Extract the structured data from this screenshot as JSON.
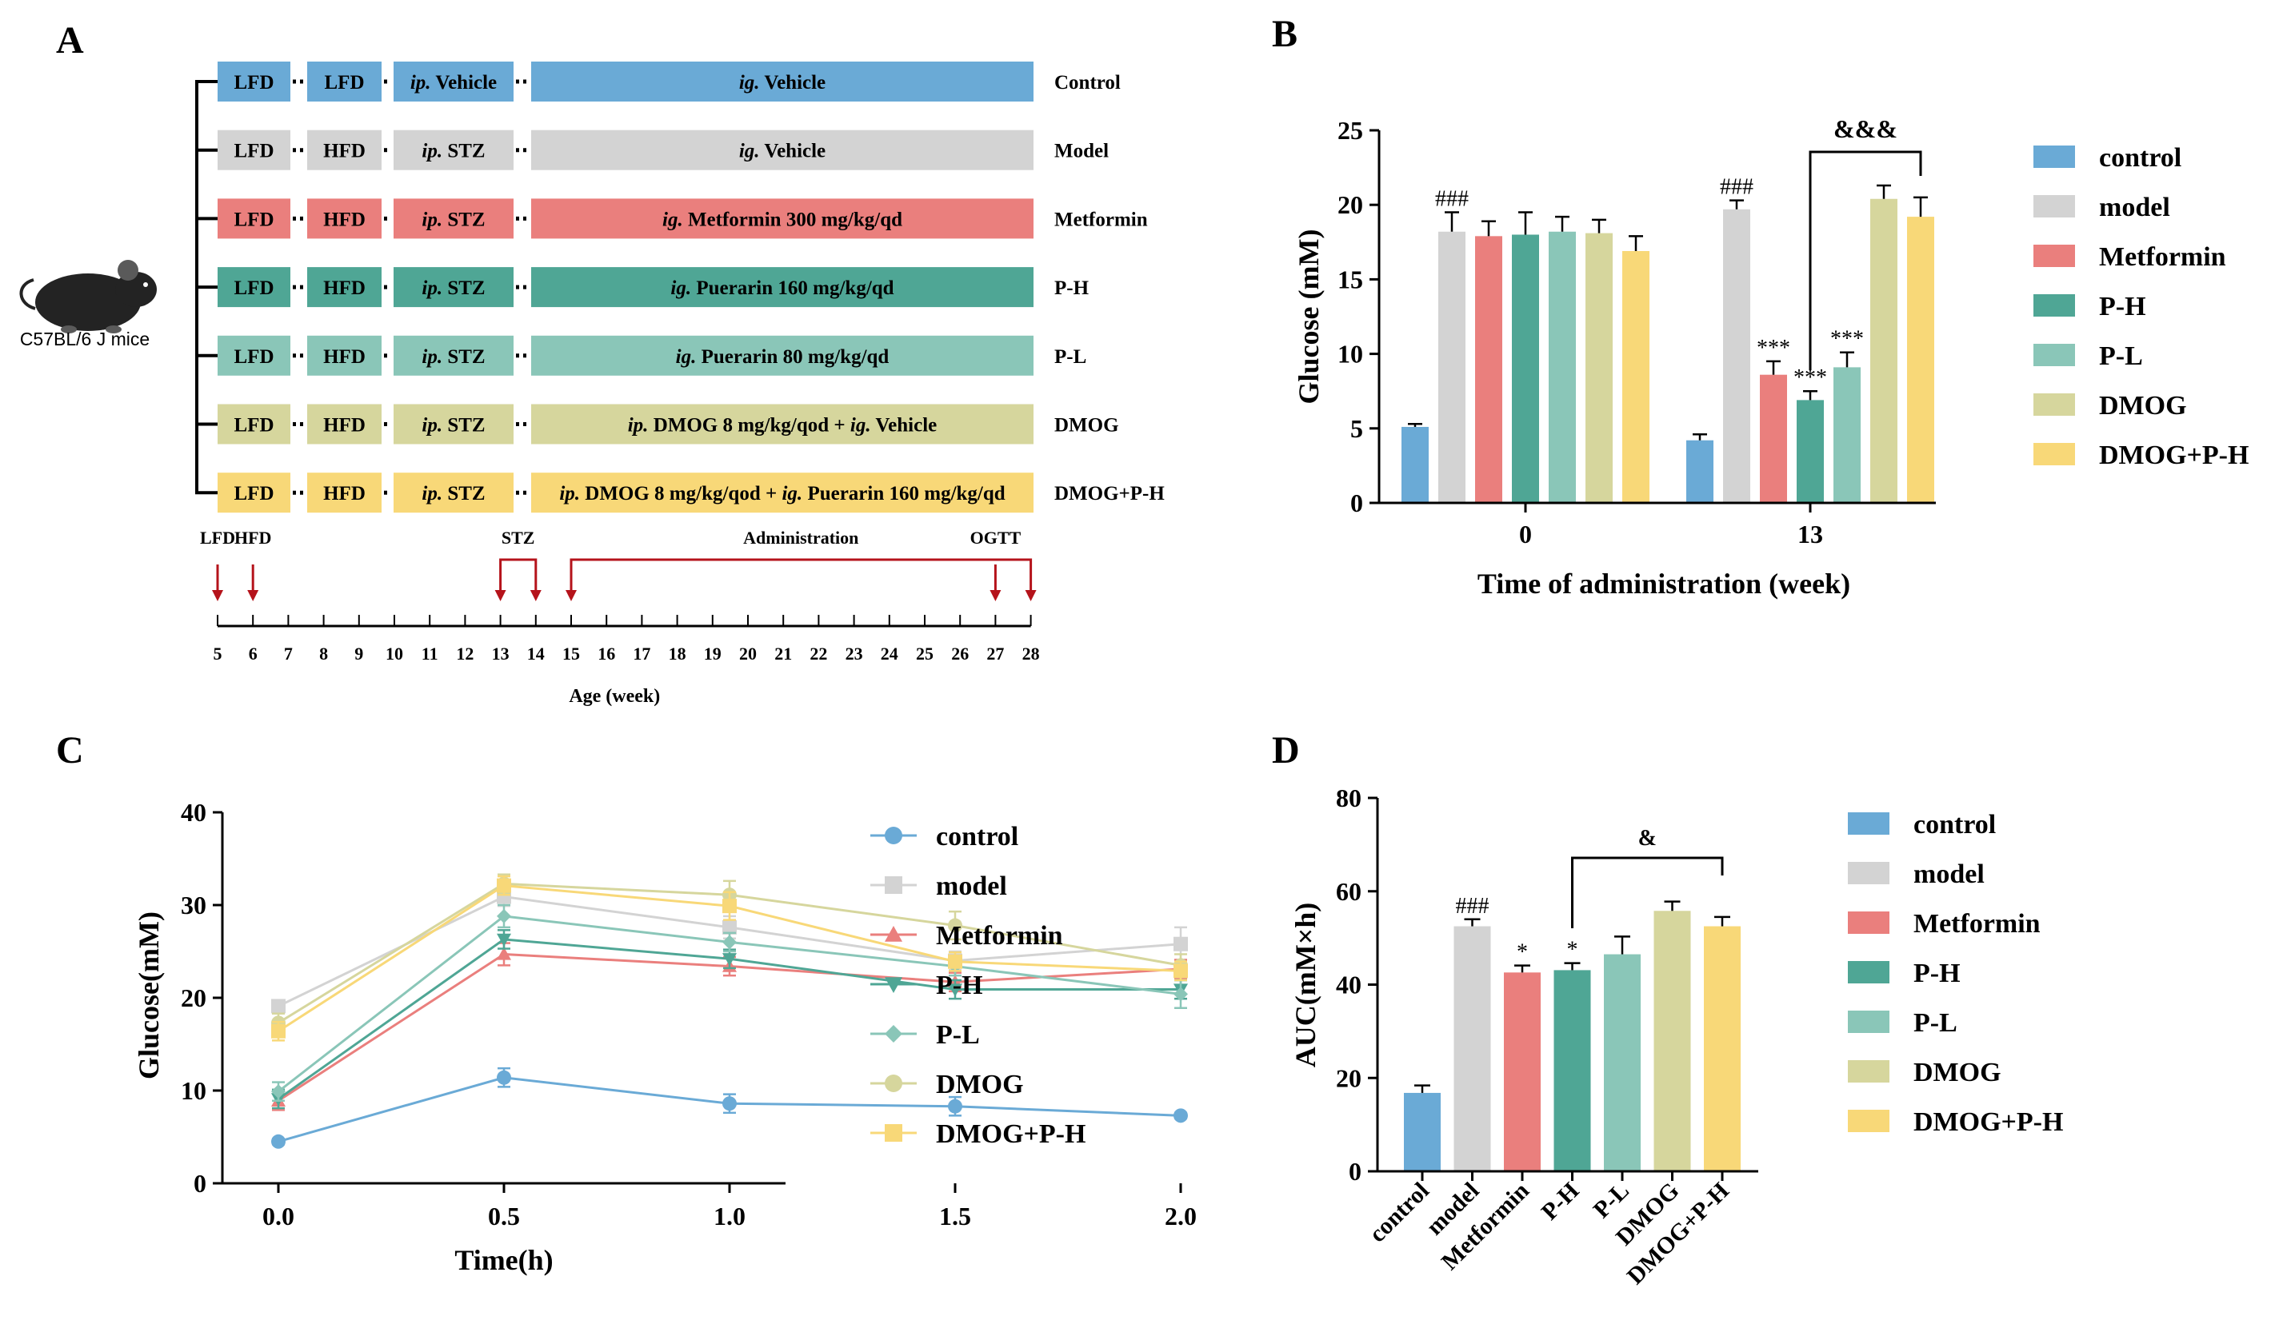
{
  "colors": {
    "control": "#6aaad6",
    "model": "#d3d3d3",
    "metformin": "#ea7f7d",
    "ph": "#4fa695",
    "pl": "#8ac6b8",
    "dmog": "#d6d69d",
    "dmogph": "#f8d878",
    "red": "#b5131b",
    "black": "#000000"
  },
  "panelA": {
    "label": "A",
    "mouse_label": "C57BL/6 J mice",
    "rows": [
      {
        "key": "control",
        "name": "Control",
        "diet1": "LFD",
        "diet2": "LFD",
        "inj": [
          "ip.",
          "Vehicle"
        ],
        "treat": [
          [
            "i",
            "ig."
          ],
          [
            "n",
            " Vehicle"
          ]
        ]
      },
      {
        "key": "model",
        "name": "Model",
        "diet1": "LFD",
        "diet2": "HFD",
        "inj": [
          "ip.",
          "STZ"
        ],
        "treat": [
          [
            "i",
            "ig."
          ],
          [
            "n",
            " Vehicle"
          ]
        ]
      },
      {
        "key": "metformin",
        "name": "Metformin",
        "diet1": "LFD",
        "diet2": "HFD",
        "inj": [
          "ip.",
          "STZ"
        ],
        "treat": [
          [
            "i",
            "ig."
          ],
          [
            "n",
            " Metformin 300 mg/kg/qd"
          ]
        ]
      },
      {
        "key": "ph",
        "name": "P-H",
        "diet1": "LFD",
        "diet2": "HFD",
        "inj": [
          "ip.",
          "STZ"
        ],
        "treat": [
          [
            "i",
            "ig."
          ],
          [
            "n",
            " Puerarin 160 mg/kg/qd"
          ]
        ]
      },
      {
        "key": "pl",
        "name": "P-L",
        "diet1": "LFD",
        "diet2": "HFD",
        "inj": [
          "ip.",
          "STZ"
        ],
        "treat": [
          [
            "i",
            "ig."
          ],
          [
            "n",
            " Puerarin 80 mg/kg/qd"
          ]
        ]
      },
      {
        "key": "dmog",
        "name": "DMOG",
        "diet1": "LFD",
        "diet2": "HFD",
        "inj": [
          "ip.",
          "STZ"
        ],
        "treat": [
          [
            "i",
            "ip."
          ],
          [
            "n",
            " DMOG 8 mg/kg/qod + "
          ],
          [
            "i",
            "ig."
          ],
          [
            "n",
            " Vehicle"
          ]
        ]
      },
      {
        "key": "dmogph",
        "name": "DMOG+P-H",
        "diet1": "LFD",
        "diet2": "HFD",
        "inj": [
          "ip.",
          "STZ"
        ],
        "treat": [
          [
            "i",
            "ip."
          ],
          [
            "n",
            " DMOG 8 mg/kg/qod + "
          ],
          [
            "i",
            "ig."
          ],
          [
            "n",
            " Puerarin 160 mg/kg/qd"
          ]
        ]
      }
    ],
    "timeline": {
      "weeks": [
        5,
        6,
        7,
        8,
        9,
        10,
        11,
        12,
        13,
        14,
        15,
        16,
        17,
        18,
        19,
        20,
        21,
        22,
        23,
        24,
        25,
        26,
        27,
        28
      ],
      "axis_label": "Age (week)",
      "markers": [
        {
          "label": "LFD",
          "week": 5
        },
        {
          "label": "HFD",
          "week": 6
        },
        {
          "label": "STZ",
          "week_start": 13,
          "week_end": 14
        },
        {
          "label": "Administration",
          "week_start": 15,
          "week_end": 28
        },
        {
          "label": "OGTT",
          "week": 27
        }
      ]
    }
  },
  "legend_groups": [
    "control",
    "model",
    "Metformin",
    "P-H",
    "P-L",
    "DMOG",
    "DMOG+P-H"
  ],
  "chart_data": [
    {
      "panel": "B",
      "type": "bar",
      "xlabel": "Time of administration (week)",
      "ylabel": "Glucose (mM)",
      "ylim": [
        0,
        25
      ],
      "yticks": [
        0,
        5,
        10,
        15,
        20,
        25
      ],
      "categories": [
        "0",
        "13"
      ],
      "series": [
        {
          "name": "control",
          "values": [
            5.1,
            4.2
          ],
          "err": [
            0.2,
            0.4
          ]
        },
        {
          "name": "model",
          "values": [
            18.2,
            19.7
          ],
          "err": [
            1.3,
            0.6
          ]
        },
        {
          "name": "Metformin",
          "values": [
            17.9,
            8.6
          ],
          "err": [
            1.0,
            0.9
          ]
        },
        {
          "name": "P-H",
          "values": [
            18.0,
            6.9
          ],
          "err": [
            1.5,
            0.6
          ]
        },
        {
          "name": "P-L",
          "values": [
            18.2,
            9.1
          ],
          "err": [
            1.0,
            1.0
          ]
        },
        {
          "name": "DMOG",
          "values": [
            18.1,
            20.4
          ],
          "err": [
            0.9,
            0.9
          ]
        },
        {
          "name": "DMOG+P-H",
          "values": [
            16.9,
            19.2
          ],
          "err": [
            1.0,
            1.3
          ]
        }
      ],
      "annotations": [
        {
          "text": "###",
          "category": "0",
          "series": "model"
        },
        {
          "text": "###",
          "category": "13",
          "series": "model"
        },
        {
          "text": "***",
          "category": "13",
          "series": "Metformin"
        },
        {
          "text": "***",
          "category": "13",
          "series": "P-H"
        },
        {
          "text": "***",
          "category": "13",
          "series": "P-L"
        }
      ],
      "bracket": {
        "text": "&&&",
        "from": "P-H",
        "to": "DMOG+P-H",
        "category": "13"
      }
    },
    {
      "panel": "C",
      "type": "line",
      "xlabel": "Time(h)",
      "ylabel": "Glucose(mM)",
      "x": [
        0.0,
        0.5,
        1.0,
        1.5,
        2.0
      ],
      "xticks": [
        "0.0",
        "0.5",
        "1.0",
        "1.5",
        "2.0"
      ],
      "ylim": [
        0,
        40
      ],
      "yticks": [
        0,
        10,
        20,
        30,
        40
      ],
      "series": [
        {
          "name": "control",
          "marker": "circle",
          "values": [
            4.5,
            11.4,
            8.6,
            8.3,
            7.3
          ],
          "err": [
            0.3,
            1.0,
            1.0,
            1.0,
            0.3
          ]
        },
        {
          "name": "model",
          "marker": "square",
          "values": [
            19.1,
            30.9,
            27.6,
            24.0,
            25.8
          ],
          "err": [
            0.6,
            1.0,
            1.2,
            1.0,
            1.8
          ]
        },
        {
          "name": "Metformin",
          "marker": "triangle-up",
          "values": [
            8.9,
            24.7,
            23.4,
            21.7,
            23.1
          ],
          "err": [
            1.0,
            1.2,
            1.0,
            1.0,
            1.0
          ]
        },
        {
          "name": "P-H",
          "marker": "triangle-down",
          "values": [
            9.1,
            26.3,
            24.2,
            20.9,
            20.9
          ],
          "err": [
            1.0,
            1.0,
            1.0,
            1.0,
            1.0
          ]
        },
        {
          "name": "P-L",
          "marker": "diamond",
          "values": [
            9.9,
            28.8,
            26.0,
            23.4,
            20.4
          ],
          "err": [
            1.0,
            1.2,
            1.0,
            1.0,
            1.5
          ]
        },
        {
          "name": "DMOG",
          "marker": "circle",
          "values": [
            17.3,
            32.3,
            31.1,
            27.8,
            23.5
          ],
          "err": [
            1.0,
            1.0,
            1.5,
            1.5,
            1.2
          ]
        },
        {
          "name": "DMOG+P-H",
          "marker": "square",
          "values": [
            16.4,
            32.1,
            29.9,
            23.9,
            22.9
          ],
          "err": [
            1.0,
            1.0,
            1.5,
            1.0,
            1.0
          ]
        }
      ]
    },
    {
      "panel": "D",
      "type": "bar",
      "xlabel": "",
      "ylabel": "AUC(mM×h)",
      "ylim": [
        0,
        80
      ],
      "yticks": [
        0,
        20,
        40,
        60,
        80
      ],
      "categories": [
        "control",
        "model",
        "Metformin",
        "P-H",
        "P-L",
        "DMOG",
        "DMOG+P-H"
      ],
      "values": [
        16.8,
        52.5,
        42.6,
        43.1,
        46.5,
        55.8,
        52.5
      ],
      "err": [
        1.6,
        1.5,
        1.5,
        1.5,
        3.8,
        2.0,
        2.0
      ],
      "annotations": [
        {
          "text": "###",
          "category": "model"
        },
        {
          "text": "*",
          "category": "Metformin"
        },
        {
          "text": "*",
          "category": "P-H"
        }
      ],
      "bracket": {
        "text": "&",
        "from": "P-H",
        "to": "DMOG+P-H"
      }
    }
  ],
  "panel_labels": {
    "B": "B",
    "C": "C",
    "D": "D"
  }
}
